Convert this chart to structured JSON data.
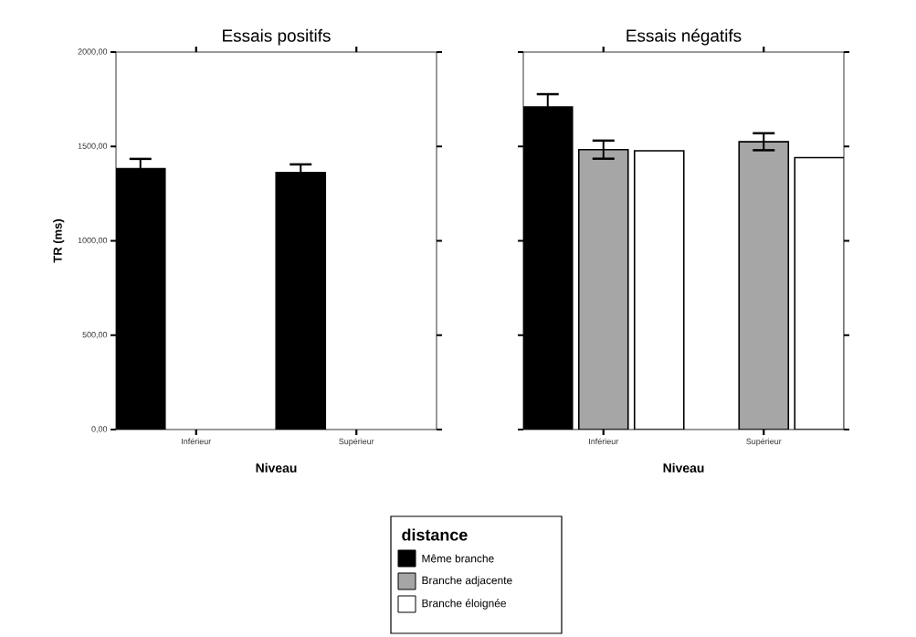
{
  "chart_data": [
    {
      "type": "bar",
      "title": "Essais positifs",
      "xlabel": "Niveau",
      "ylabel": "TR (ms)",
      "categories": [
        "Inférieur",
        "Supérieur"
      ],
      "series": [
        {
          "name": "Même branche",
          "color": "#000000",
          "values": [
            1382,
            1362
          ],
          "errors": [
            52,
            43
          ]
        },
        {
          "name": "Branche adjacente",
          "color": "#a6a6a6",
          "values": [
            null,
            null
          ]
        },
        {
          "name": "Branche éloignée",
          "color": "#ffffff",
          "values": [
            null,
            null
          ]
        }
      ],
      "ylim": [
        0,
        2000
      ],
      "yticks": [
        {
          "value": 0,
          "label": "0,00"
        },
        {
          "value": 500,
          "label": "500,00"
        },
        {
          "value": 1000,
          "label": "1000,00"
        },
        {
          "value": 1500,
          "label": "1500,00"
        },
        {
          "value": 2000,
          "label": "2000,00"
        }
      ],
      "legend": "bottom",
      "legend_title": "distance"
    },
    {
      "type": "bar",
      "title": "Essais négatifs",
      "xlabel": "Niveau",
      "categories": [
        "Inférieur",
        "Supérieur"
      ],
      "series": [
        {
          "color": "#000000",
          "values": [
            1709,
            null
          ],
          "errors": [
            68,
            null
          ]
        },
        {
          "color": "#a6a6a6",
          "values": [
            1483,
            1525
          ],
          "errors": [
            48,
            45
          ]
        },
        {
          "color": "#ffffff",
          "values": [
            1477,
            1441
          ]
        }
      ],
      "ylim": [
        0,
        2000
      ],
      "yticks": [
        0,
        500,
        1000,
        1500,
        2000
      ],
      "tick_labels": "x"
    }
  ]
}
